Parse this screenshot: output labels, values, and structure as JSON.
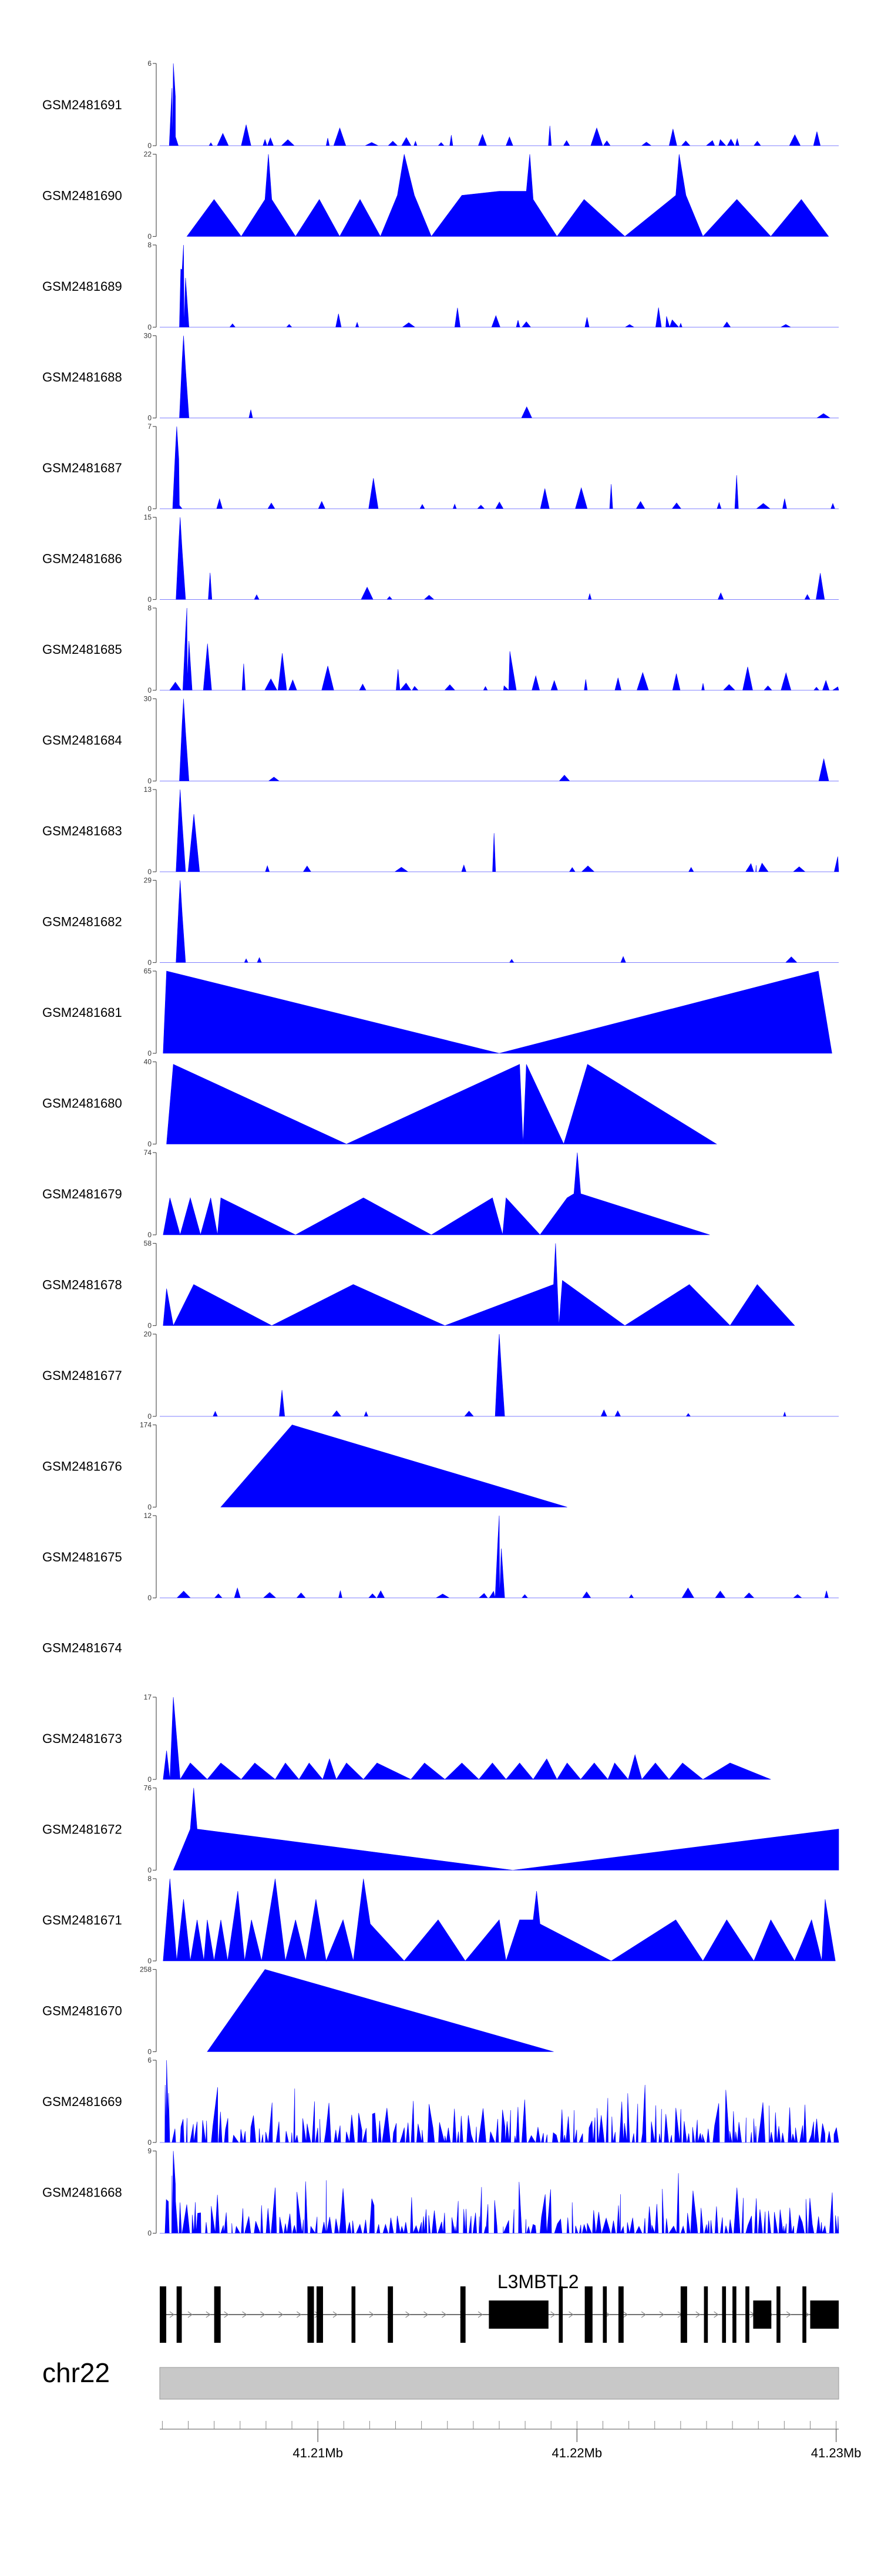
{
  "chart_data": {
    "type": "area",
    "title": "",
    "track_color": "#0000ff",
    "tracks": [
      {
        "name": "GSM2481691",
        "ymax": "6",
        "ymin": "0",
        "style": "spiky",
        "seed": 11,
        "peak_x": 0.02,
        "peak_h": 1.0,
        "density": 0.55
      },
      {
        "name": "GSM2481690",
        "ymax": "22",
        "ymin": "0",
        "style": "sparse",
        "points": [
          [
            0.04,
            0
          ],
          [
            0.08,
            0.45
          ],
          [
            0.12,
            0
          ],
          [
            0.155,
            0.45
          ],
          [
            0.16,
            1.0
          ],
          [
            0.165,
            0.45
          ],
          [
            0.2,
            0
          ],
          [
            0.235,
            0.45
          ],
          [
            0.265,
            0
          ],
          [
            0.295,
            0.45
          ],
          [
            0.325,
            0
          ],
          [
            0.35,
            0.5
          ],
          [
            0.36,
            1.0
          ],
          [
            0.375,
            0.5
          ],
          [
            0.4,
            0
          ],
          [
            0.445,
            0.5
          ],
          [
            0.5,
            0.55
          ],
          [
            0.54,
            0.55
          ],
          [
            0.545,
            1.0
          ],
          [
            0.55,
            0.45
          ],
          [
            0.585,
            0
          ],
          [
            0.625,
            0.45
          ],
          [
            0.685,
            0
          ],
          [
            0.76,
            0.5
          ],
          [
            0.765,
            1.0
          ],
          [
            0.775,
            0.5
          ],
          [
            0.8,
            0
          ],
          [
            0.85,
            0.45
          ],
          [
            0.9,
            0
          ],
          [
            0.945,
            0.45
          ],
          [
            0.985,
            0
          ]
        ]
      },
      {
        "name": "GSM2481689",
        "ymax": "8",
        "ymin": "0",
        "style": "spiky",
        "seed": 23,
        "peak_x": 0.035,
        "peak_h": 1.0,
        "density": 0.35,
        "cluster": 0.06
      },
      {
        "name": "GSM2481688",
        "ymax": "30",
        "ymin": "0",
        "style": "spiky",
        "seed": 31,
        "peak_x": 0.035,
        "peak_h": 1.0,
        "density": 0.06,
        "cluster": 0.04
      },
      {
        "name": "GSM2481687",
        "ymax": "7",
        "ymin": "0",
        "style": "spiky",
        "seed": 41,
        "peak_x": 0.025,
        "peak_h": 1.0,
        "density": 0.4
      },
      {
        "name": "GSM2481686",
        "ymax": "15",
        "ymin": "0",
        "style": "spiky",
        "seed": 53,
        "peak_x": 0.03,
        "peak_h": 1.0,
        "density": 0.12,
        "cluster": 0.04
      },
      {
        "name": "GSM2481685",
        "ymax": "8",
        "ymin": "0",
        "style": "spiky",
        "seed": 61,
        "peak_x": 0.04,
        "peak_h": 1.0,
        "density": 0.6
      },
      {
        "name": "GSM2481684",
        "ymax": "30",
        "ymin": "0",
        "style": "spiky",
        "seed": 71,
        "peak_x": 0.035,
        "peak_h": 1.0,
        "density": 0.05,
        "cluster": 0.05
      },
      {
        "name": "GSM2481683",
        "ymax": "13",
        "ymin": "0",
        "style": "spiky",
        "seed": 83,
        "peak_x": 0.03,
        "peak_h": 1.0,
        "density": 0.2,
        "cluster": 0.05
      },
      {
        "name": "GSM2481682",
        "ymax": "29",
        "ymin": "0",
        "style": "spiky",
        "seed": 97,
        "peak_x": 0.03,
        "peak_h": 1.0,
        "density": 0.07,
        "cluster": 0.05
      },
      {
        "name": "GSM2481681",
        "ymax": "65",
        "ymin": "0",
        "style": "sparse",
        "points": [
          [
            0.005,
            0
          ],
          [
            0.01,
            1.0
          ],
          [
            0.5,
            0
          ],
          [
            0.97,
            1.0
          ],
          [
            0.99,
            0
          ]
        ]
      },
      {
        "name": "GSM2481680",
        "ymax": "40",
        "ymin": "0",
        "style": "sparse",
        "points": [
          [
            0.01,
            0
          ],
          [
            0.02,
            0.97
          ],
          [
            0.275,
            0
          ],
          [
            0.53,
            0.97
          ],
          [
            0.535,
            0
          ],
          [
            0.54,
            0.97
          ],
          [
            0.595,
            0
          ],
          [
            0.63,
            0.97
          ],
          [
            0.82,
            0
          ]
        ]
      },
      {
        "name": "GSM2481679",
        "ymax": "74",
        "ymin": "0",
        "style": "sparse",
        "points": [
          [
            0.005,
            0
          ],
          [
            0.015,
            0.45
          ],
          [
            0.03,
            0
          ],
          [
            0.045,
            0.45
          ],
          [
            0.06,
            0
          ],
          [
            0.075,
            0.45
          ],
          [
            0.085,
            0
          ],
          [
            0.09,
            0.45
          ],
          [
            0.2,
            0
          ],
          [
            0.3,
            0.45
          ],
          [
            0.4,
            0
          ],
          [
            0.49,
            0.45
          ],
          [
            0.505,
            0
          ],
          [
            0.51,
            0.45
          ],
          [
            0.56,
            0
          ],
          [
            0.6,
            0.45
          ],
          [
            0.61,
            0.5
          ],
          [
            0.615,
            1.0
          ],
          [
            0.62,
            0.5
          ],
          [
            0.81,
            0
          ]
        ]
      },
      {
        "name": "GSM2481678",
        "ymax": "58",
        "ymin": "0",
        "style": "sparse",
        "points": [
          [
            0.005,
            0
          ],
          [
            0.01,
            0.45
          ],
          [
            0.02,
            0
          ],
          [
            0.05,
            0.5
          ],
          [
            0.165,
            0
          ],
          [
            0.285,
            0.5
          ],
          [
            0.42,
            0
          ],
          [
            0.58,
            0.5
          ],
          [
            0.583,
            1.0
          ],
          [
            0.588,
            0
          ],
          [
            0.593,
            0.55
          ],
          [
            0.685,
            0
          ],
          [
            0.78,
            0.5
          ],
          [
            0.84,
            0
          ],
          [
            0.88,
            0.5
          ],
          [
            0.935,
            0
          ]
        ]
      },
      {
        "name": "GSM2481677",
        "ymax": "20",
        "ymin": "0",
        "style": "spiky",
        "seed": 131,
        "peak_x": 0.5,
        "peak_h": 1.0,
        "density": 0.12,
        "minor_peak": 0.18
      },
      {
        "name": "GSM2481676",
        "ymax": "174",
        "ymin": "0",
        "style": "sparse",
        "points": [
          [
            0.09,
            0
          ],
          [
            0.195,
            1.0
          ],
          [
            0.6,
            0
          ]
        ]
      },
      {
        "name": "GSM2481675",
        "ymax": "12",
        "ymin": "0",
        "style": "spiky",
        "seed": 151,
        "peak_x": 0.5,
        "peak_h": 1.0,
        "density": 0.35,
        "gappy": true
      },
      {
        "name": "GSM2481674",
        "ymax": "",
        "ymin": "",
        "style": "empty"
      },
      {
        "name": "GSM2481673",
        "ymax": "17",
        "ymin": "0",
        "style": "sparse",
        "points": [
          [
            0.005,
            0
          ],
          [
            0.01,
            0.35
          ],
          [
            0.015,
            0
          ],
          [
            0.02,
            1.0
          ],
          [
            0.03,
            0
          ],
          [
            0.045,
            0.2
          ],
          [
            0.07,
            0
          ],
          [
            0.09,
            0.2
          ],
          [
            0.12,
            0
          ],
          [
            0.14,
            0.2
          ],
          [
            0.17,
            0
          ],
          [
            0.185,
            0.2
          ],
          [
            0.205,
            0
          ],
          [
            0.22,
            0.2
          ],
          [
            0.24,
            0
          ],
          [
            0.25,
            0.25
          ],
          [
            0.26,
            0
          ],
          [
            0.275,
            0.2
          ],
          [
            0.3,
            0
          ],
          [
            0.32,
            0.2
          ],
          [
            0.37,
            0
          ],
          [
            0.39,
            0.2
          ],
          [
            0.42,
            0
          ],
          [
            0.445,
            0.2
          ],
          [
            0.47,
            0
          ],
          [
            0.49,
            0.2
          ],
          [
            0.51,
            0
          ],
          [
            0.53,
            0.2
          ],
          [
            0.55,
            0
          ],
          [
            0.57,
            0.25
          ],
          [
            0.585,
            0
          ],
          [
            0.6,
            0.2
          ],
          [
            0.62,
            0
          ],
          [
            0.64,
            0.2
          ],
          [
            0.66,
            0
          ],
          [
            0.67,
            0.2
          ],
          [
            0.69,
            0
          ],
          [
            0.7,
            0.3
          ],
          [
            0.71,
            0
          ],
          [
            0.73,
            0.2
          ],
          [
            0.75,
            0
          ],
          [
            0.77,
            0.2
          ],
          [
            0.8,
            0
          ],
          [
            0.84,
            0.2
          ],
          [
            0.9,
            0
          ]
        ]
      },
      {
        "name": "GSM2481672",
        "ymax": "76",
        "ymin": "0",
        "style": "sparse",
        "points": [
          [
            0.02,
            0
          ],
          [
            0.045,
            0.5
          ],
          [
            0.05,
            1.0
          ],
          [
            0.055,
            0.5
          ],
          [
            0.52,
            0
          ],
          [
            1.0,
            0.5
          ]
        ]
      },
      {
        "name": "GSM2481671",
        "ymax": "8",
        "ymin": "0",
        "style": "sparse",
        "points": [
          [
            0.005,
            0
          ],
          [
            0.015,
            1.0
          ],
          [
            0.025,
            0
          ],
          [
            0.035,
            0.75
          ],
          [
            0.045,
            0
          ],
          [
            0.055,
            0.5
          ],
          [
            0.065,
            0
          ],
          [
            0.07,
            0.5
          ],
          [
            0.08,
            0
          ],
          [
            0.09,
            0.5
          ],
          [
            0.1,
            0
          ],
          [
            0.115,
            0.85
          ],
          [
            0.125,
            0
          ],
          [
            0.135,
            0.5
          ],
          [
            0.15,
            0
          ],
          [
            0.17,
            1.0
          ],
          [
            0.185,
            0
          ],
          [
            0.2,
            0.5
          ],
          [
            0.215,
            0
          ],
          [
            0.23,
            0.75
          ],
          [
            0.245,
            0
          ],
          [
            0.27,
            0.5
          ],
          [
            0.285,
            0
          ],
          [
            0.3,
            1.0
          ],
          [
            0.31,
            0.45
          ],
          [
            0.36,
            0
          ],
          [
            0.41,
            0.5
          ],
          [
            0.45,
            0
          ],
          [
            0.5,
            0.5
          ],
          [
            0.51,
            0
          ],
          [
            0.53,
            0.5
          ],
          [
            0.55,
            0.5
          ],
          [
            0.555,
            0.85
          ],
          [
            0.56,
            0.45
          ],
          [
            0.665,
            0
          ],
          [
            0.76,
            0.5
          ],
          [
            0.8,
            0
          ],
          [
            0.835,
            0.5
          ],
          [
            0.875,
            0
          ],
          [
            0.9,
            0.5
          ],
          [
            0.935,
            0
          ],
          [
            0.96,
            0.5
          ],
          [
            0.975,
            0
          ],
          [
            0.98,
            0.75
          ],
          [
            0.995,
            0
          ]
        ]
      },
      {
        "name": "GSM2481670",
        "ymax": "258",
        "ymin": "0",
        "style": "sparse",
        "points": [
          [
            0.07,
            0
          ],
          [
            0.155,
            1.0
          ],
          [
            0.58,
            0
          ]
        ]
      },
      {
        "name": "GSM2481669",
        "ymax": "6",
        "ymin": "0",
        "style": "spiky",
        "seed": 211,
        "peak_x": 0.01,
        "peak_h": 1.0,
        "density": 0.75,
        "dense": true
      },
      {
        "name": "GSM2481668",
        "ymax": "9",
        "ymin": "0",
        "style": "spiky",
        "seed": 223,
        "peak_x": 0.02,
        "peak_h": 1.0,
        "density": 0.85,
        "dense": true
      }
    ],
    "gene": {
      "name": "L3MBTL2",
      "start": 41203900,
      "end": 41230100,
      "exons": [
        [
          41203900,
          41204150
        ],
        [
          41204550,
          41204750
        ],
        [
          41206000,
          41206250
        ],
        [
          41209600,
          41209850
        ],
        [
          41209950,
          41210200
        ],
        [
          41211300,
          41211450
        ],
        [
          41212700,
          41212900
        ],
        [
          41215500,
          41215700
        ],
        [
          41216600,
          41218900
        ],
        [
          41219300,
          41219450
        ],
        [
          41220300,
          41220600
        ],
        [
          41221000,
          41221150
        ],
        [
          41221600,
          41221800
        ],
        [
          41224000,
          41224250
        ],
        [
          41224900,
          41225050
        ],
        [
          41225600,
          41225750
        ],
        [
          41226000,
          41226150
        ],
        [
          41226500,
          41226650
        ],
        [
          41226800,
          41227500
        ],
        [
          41227700,
          41227850
        ],
        [
          41228700,
          41228850
        ],
        [
          41229000,
          41230100
        ]
      ]
    },
    "axis": {
      "chromosome": "chr22",
      "start": 41203900,
      "end": 41230100,
      "ticks": [
        41210000,
        41220000,
        41230000
      ],
      "tick_labels": [
        "41.21Mb",
        "41.22Mb",
        "41.23Mb"
      ],
      "minor_step": 1000
    }
  }
}
